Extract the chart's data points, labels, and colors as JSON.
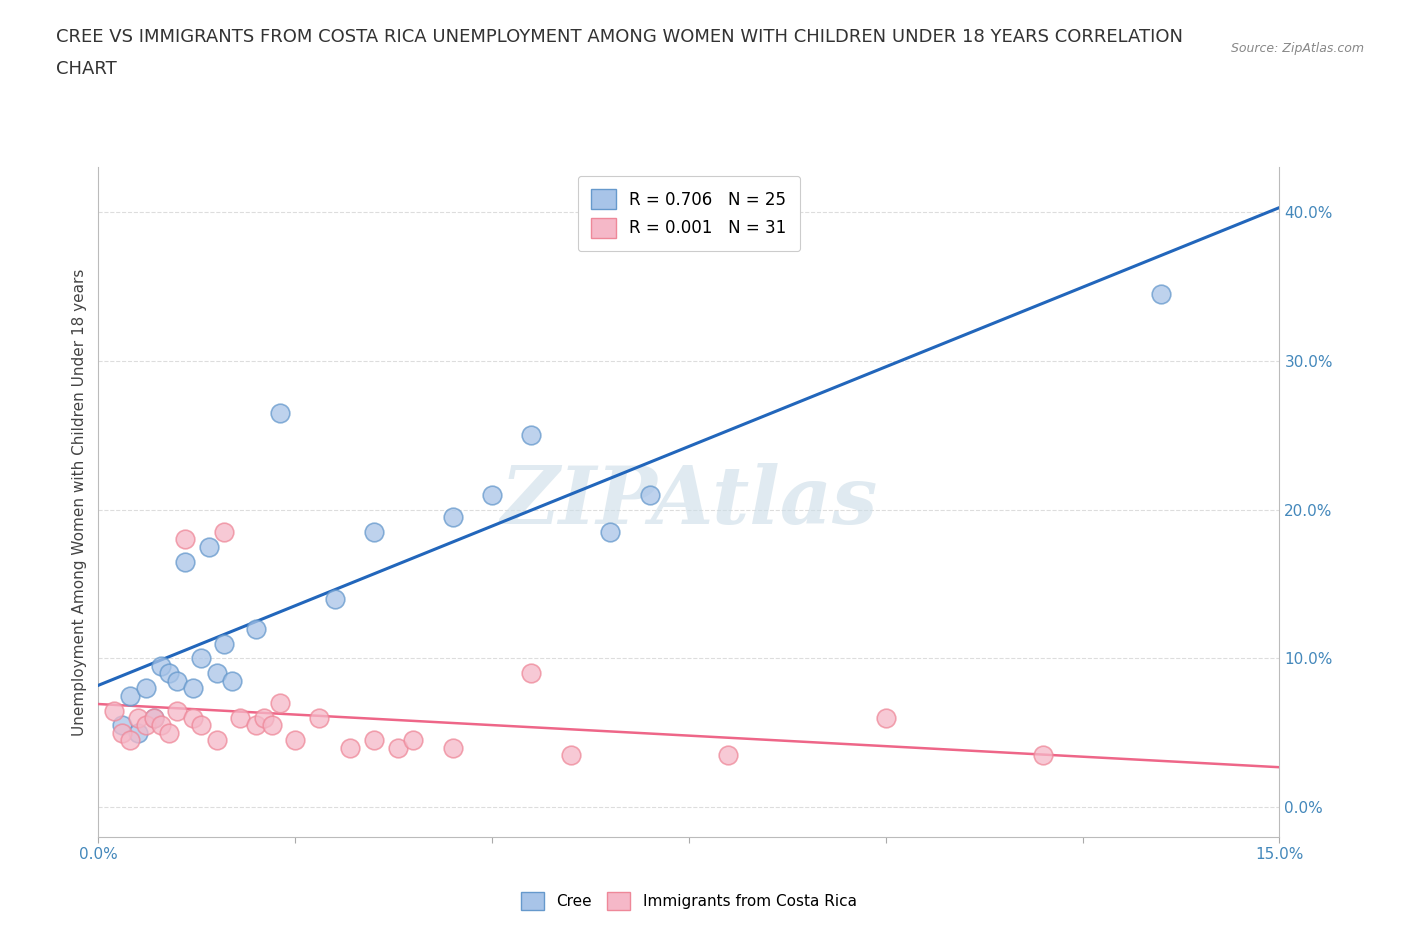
{
  "title_line1": "CREE VS IMMIGRANTS FROM COSTA RICA UNEMPLOYMENT AMONG WOMEN WITH CHILDREN UNDER 18 YEARS CORRELATION",
  "title_line2": "CHART",
  "source": "Source: ZipAtlas.com",
  "xlim": [
    0.0,
    15.0
  ],
  "ylim": [
    -2.0,
    43.0
  ],
  "ylabel": "Unemployment Among Women with Children Under 18 years",
  "cree_color": "#a8c4e8",
  "cree_edge_color": "#6699cc",
  "immigrants_color": "#f5b8c8",
  "immigrants_edge_color": "#ee8899",
  "cree_line_color": "#2266bb",
  "immigrants_line_color": "#ee6688",
  "watermark": "ZIPAtlas",
  "watermark_color": "#ccdde8",
  "legend_r_cree": "R = 0.706",
  "legend_n_cree": "N = 25",
  "legend_r_imm": "R = 0.001",
  "legend_n_imm": "N = 31",
  "cree_x": [
    0.3,
    0.4,
    0.5,
    0.6,
    0.7,
    0.8,
    0.9,
    1.0,
    1.1,
    1.2,
    1.3,
    1.4,
    1.5,
    1.6,
    1.7,
    2.0,
    2.3,
    3.0,
    3.5,
    4.5,
    5.0,
    5.5,
    6.5,
    7.0,
    13.5
  ],
  "cree_y": [
    5.5,
    7.5,
    5.0,
    8.0,
    6.0,
    9.5,
    9.0,
    8.5,
    16.5,
    8.0,
    10.0,
    17.5,
    9.0,
    11.0,
    8.5,
    12.0,
    26.5,
    14.0,
    18.5,
    19.5,
    21.0,
    25.0,
    18.5,
    21.0,
    34.5
  ],
  "imm_x": [
    0.2,
    0.3,
    0.4,
    0.5,
    0.6,
    0.7,
    0.8,
    0.9,
    1.0,
    1.1,
    1.2,
    1.3,
    1.5,
    1.6,
    1.8,
    2.0,
    2.1,
    2.2,
    2.3,
    2.5,
    2.8,
    3.2,
    3.5,
    3.8,
    4.0,
    4.5,
    5.5,
    6.0,
    8.0,
    10.0,
    12.0
  ],
  "imm_y": [
    6.5,
    5.0,
    4.5,
    6.0,
    5.5,
    6.0,
    5.5,
    5.0,
    6.5,
    18.0,
    6.0,
    5.5,
    4.5,
    18.5,
    6.0,
    5.5,
    6.0,
    5.5,
    7.0,
    4.5,
    6.0,
    4.0,
    4.5,
    4.0,
    4.5,
    4.0,
    9.0,
    3.5,
    3.5,
    6.0,
    3.5
  ],
  "grid_color": "#dddddd",
  "background_color": "#ffffff",
  "title_fontsize": 13,
  "axis_label_fontsize": 11,
  "tick_fontsize": 11,
  "tick_color": "#4488bb"
}
